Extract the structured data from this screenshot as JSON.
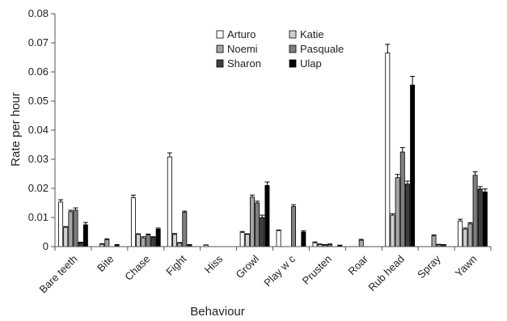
{
  "chart_data": {
    "type": "bar",
    "title": "",
    "xlabel": "Behaviour",
    "ylabel": "Rate per hour",
    "ylim": [
      0,
      0.08
    ],
    "yticks": [
      "0",
      "0.01",
      "0.02",
      "0.03",
      "0.04",
      "0.05",
      "0.06",
      "0.07",
      "0.08"
    ],
    "grid": false,
    "legend_position": "top-center",
    "categories": [
      "Bare teeth",
      "Bite",
      "Chase",
      "Fight",
      "Hiss",
      "Growl",
      "Play w c",
      "Prusten",
      "Roar",
      "Rub head",
      "Spray",
      "Yawn"
    ],
    "series": [
      {
        "name": "Arturo",
        "color": "#ffffff",
        "values": [
          0.0153,
          0,
          0.0168,
          0.0308,
          0.0005,
          0.0048,
          0.0055,
          0.0013,
          0,
          0.0665,
          0,
          0.0088
        ],
        "errors": [
          0.0008,
          0,
          0.0009,
          0.0014,
          0.0001,
          0.0004,
          0.0002,
          0.0003,
          0,
          0.003,
          0,
          0.0006
        ]
      },
      {
        "name": "Katie",
        "color": "#cfcfcf",
        "values": [
          0.0066,
          0.0008,
          0.0042,
          0.0042,
          0,
          0.0042,
          0,
          0.0007,
          0,
          0.0108,
          0,
          0.006
        ],
        "errors": [
          0.0003,
          0.0002,
          0.0002,
          0.0003,
          0,
          0.0002,
          0,
          0.0002,
          0,
          0.0005,
          0,
          0.0004
        ]
      },
      {
        "name": "Noemi",
        "color": "#a6a6a6",
        "values": [
          0.012,
          0.0024,
          0.003,
          0.0012,
          0,
          0.017,
          0,
          0.0005,
          0.0022,
          0.0237,
          0.0037,
          0.0078
        ],
        "errors": [
          0.0005,
          0.0003,
          0.0004,
          0.0002,
          0,
          0.0007,
          0,
          0.0002,
          0.0003,
          0.0011,
          0.0003,
          0.0004
        ]
      },
      {
        "name": "Pasquale",
        "color": "#7f7f7f",
        "values": [
          0.0125,
          0,
          0.004,
          0.0118,
          0,
          0.015,
          0.0138,
          0.0007,
          0,
          0.0325,
          0.0007,
          0.0245
        ],
        "errors": [
          0.0008,
          0,
          0.0003,
          0.0004,
          0,
          0.0006,
          0.0006,
          0.0002,
          0,
          0.0015,
          0.0001,
          0.0012
        ]
      },
      {
        "name": "Sharon",
        "color": "#3f3f3f",
        "values": [
          0.0013,
          0.0005,
          0.0032,
          0.0005,
          0,
          0.01,
          0,
          0,
          0,
          0.0215,
          0.0006,
          0.0198
        ],
        "errors": [
          0.0002,
          0.0002,
          0.0002,
          0.0002,
          0,
          0.0008,
          0,
          0,
          0,
          0.001,
          0.0001,
          0.0008
        ]
      },
      {
        "name": "Ulap",
        "color": "#000000",
        "values": [
          0.0075,
          0,
          0.006,
          0,
          0,
          0.021,
          0.005,
          0.0004,
          0,
          0.0555,
          0,
          0.0188
        ],
        "errors": [
          0.0008,
          0,
          0.0004,
          0,
          0,
          0.0012,
          0.0004,
          0.0001,
          0,
          0.003,
          0,
          0.001
        ]
      }
    ]
  }
}
